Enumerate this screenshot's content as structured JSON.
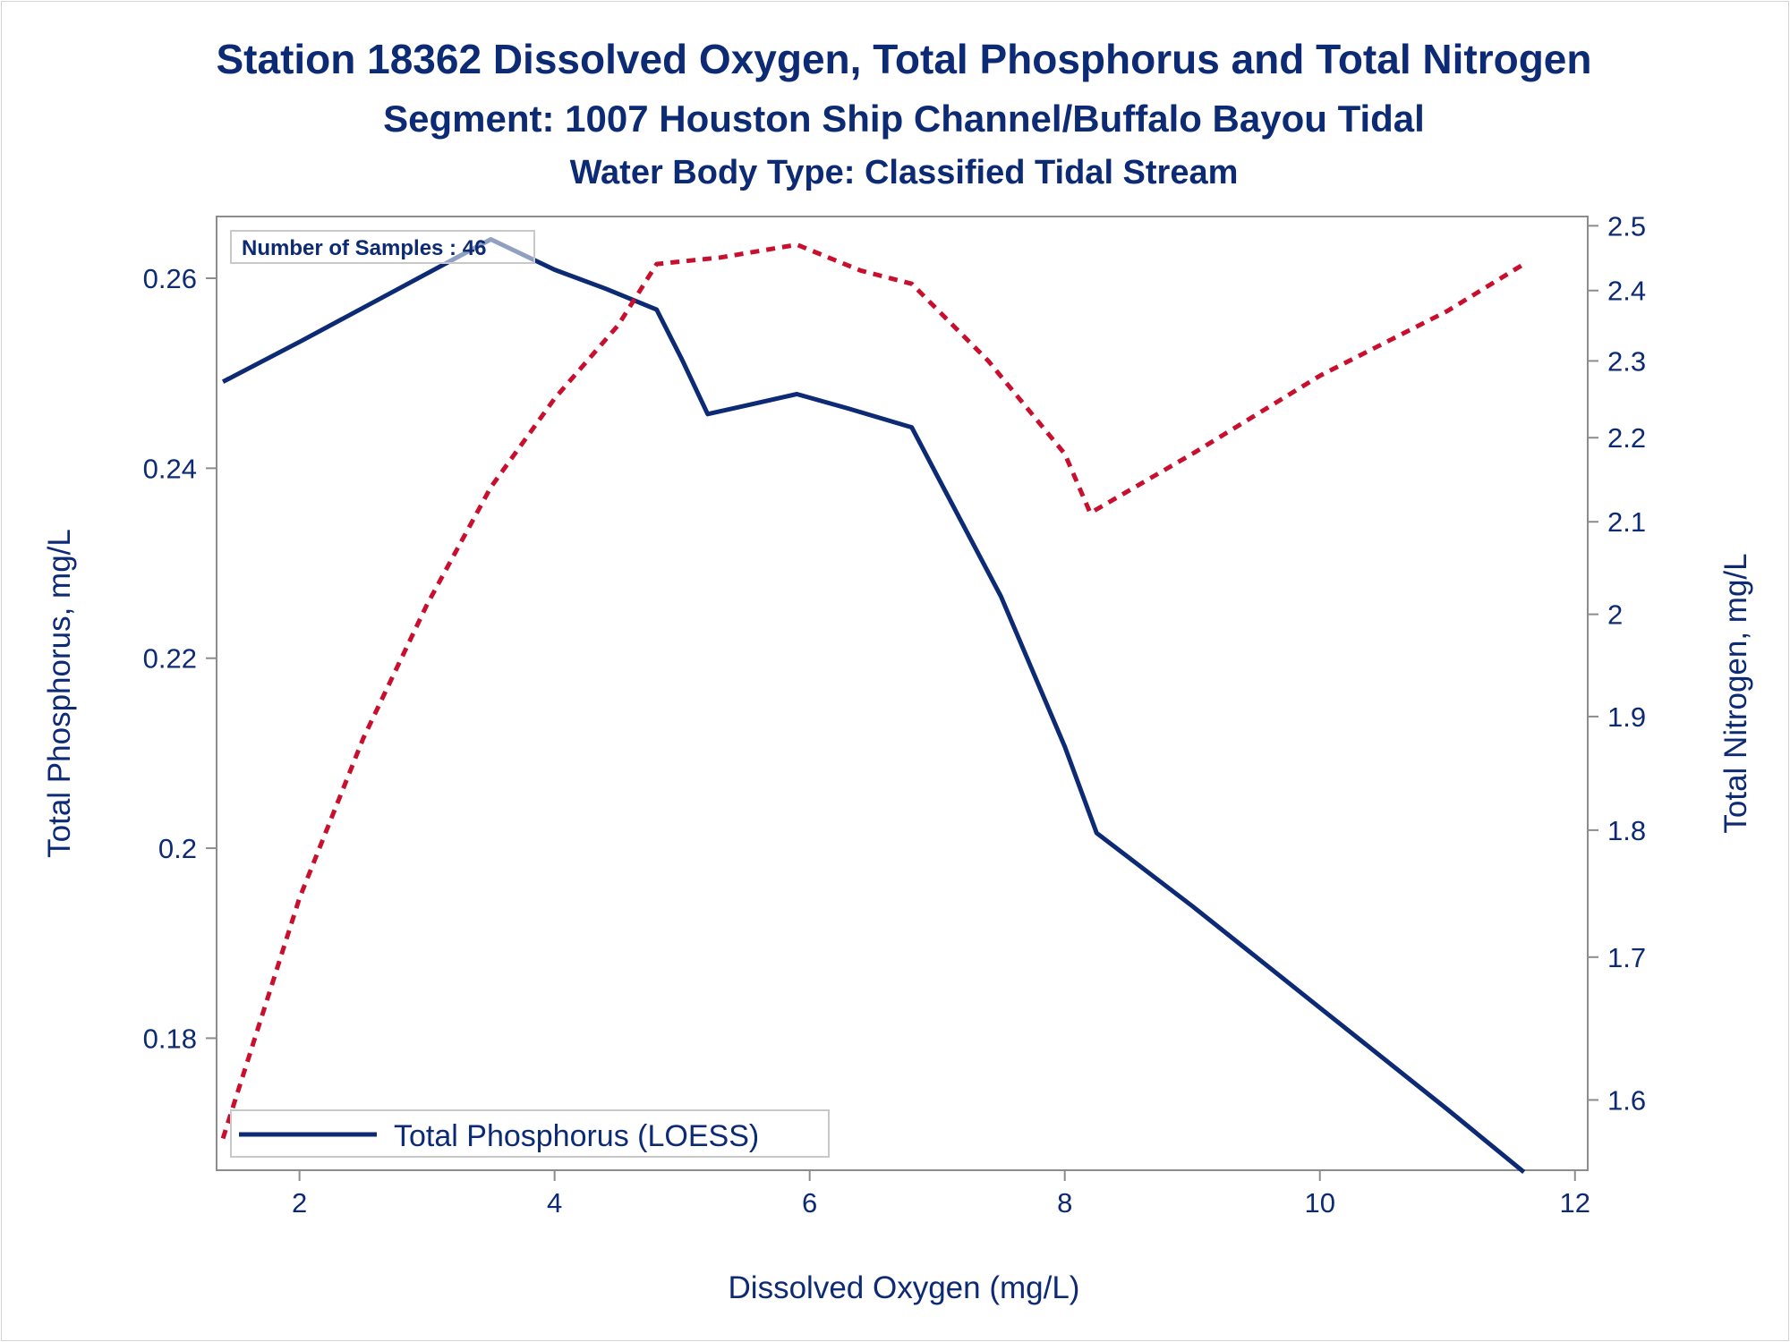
{
  "chart_data": {
    "type": "line",
    "title": "Station 18362  Dissolved Oxygen, Total Phosphorus and Total Nitrogen",
    "subtitle": "Segment: 1007  Houston Ship Channel/Buffalo Bayou Tidal",
    "subtitle2": "Water Body Type: Classified Tidal Stream",
    "xlabel": "Dissolved Oxygen (mg/L)",
    "ylabel": "Total Phosphorus, mg/L",
    "y2label": "Total Nitrogen, mg/L",
    "xlim": [
      1.35,
      12.1
    ],
    "ylim": [
      0.1661,
      0.2665
    ],
    "y2lim": [
      1.555,
      2.515
    ],
    "y2scale": "reciprocal",
    "xticks": [
      2,
      4,
      6,
      8,
      10,
      12
    ],
    "yticks": [
      0.18,
      0.2,
      0.22,
      0.24,
      0.26
    ],
    "y2ticks": [
      1.6,
      1.7,
      1.8,
      1.9,
      2,
      2.1,
      2.2,
      2.3,
      2.4,
      2.5
    ],
    "annotation": "Number of Samples : 46",
    "legend": {
      "position": "bottom-left",
      "entries": [
        "Total Phosphorus (LOESS)"
      ]
    },
    "colors": {
      "phosphorus": "#0d2a75",
      "nitrogen": "#c8102e",
      "text": "#0d2a75",
      "axis": "#8c8c8c"
    },
    "series": [
      {
        "name": "Total Phosphorus (LOESS)",
        "axis": "left",
        "style": "solid",
        "x": [
          1.4,
          2.0,
          2.5,
          3.0,
          3.5,
          3.75,
          4.0,
          4.4,
          4.8,
          5.0,
          5.2,
          5.5,
          5.9,
          6.3,
          6.8,
          7.0,
          7.5,
          8.0,
          8.25,
          9.0,
          10.0,
          11.0,
          11.6
        ],
        "y": [
          0.2491,
          0.2533,
          0.2569,
          0.2605,
          0.2641,
          0.2625,
          0.2609,
          0.2589,
          0.2567,
          0.2514,
          0.2457,
          0.2466,
          0.2478,
          0.2463,
          0.2443,
          0.2392,
          0.2265,
          0.2107,
          0.2016,
          0.1939,
          0.1832,
          0.1725,
          0.1659
        ]
      },
      {
        "name": "Total Nitrogen",
        "axis": "right",
        "style": "dashed",
        "x": [
          1.4,
          2.0,
          2.5,
          3.0,
          3.5,
          4.0,
          4.5,
          4.8,
          5.3,
          5.9,
          6.4,
          6.8,
          7.4,
          8.0,
          8.2,
          9.0,
          10.0,
          11.0,
          11.6
        ],
        "y": [
          1.575,
          1.745,
          1.88,
          2.01,
          2.14,
          2.25,
          2.35,
          2.44,
          2.45,
          2.47,
          2.43,
          2.41,
          2.3,
          2.18,
          2.11,
          2.18,
          2.28,
          2.37,
          2.44
        ]
      }
    ]
  }
}
